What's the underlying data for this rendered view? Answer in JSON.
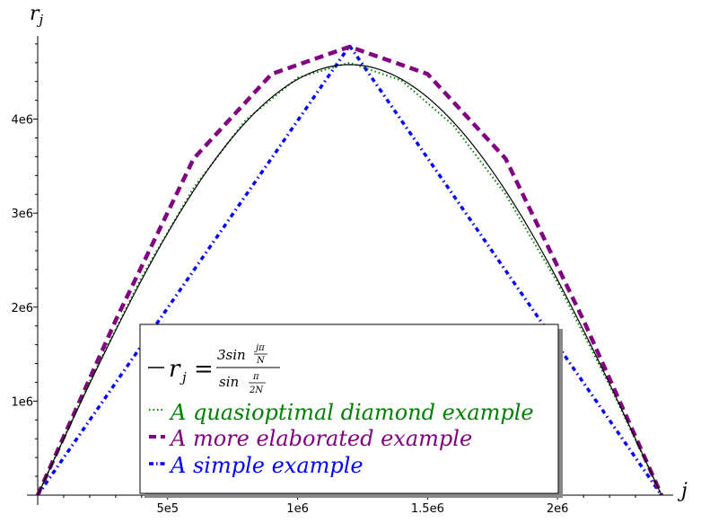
{
  "chart_data": {
    "type": "line",
    "xlabel": "j",
    "ylabel": "r_j",
    "xlim": [
      0,
      2400000
    ],
    "ylim": [
      0,
      4900000
    ],
    "x_ticks": [
      {
        "value": 500000,
        "label": "5e5"
      },
      {
        "value": 1000000,
        "label": "1e6"
      },
      {
        "value": 1500000,
        "label": "1.5e6"
      },
      {
        "value": 2000000,
        "label": "2e6"
      }
    ],
    "y_ticks": [
      {
        "value": 1000000,
        "label": "1e6"
      },
      {
        "value": 2000000,
        "label": "2e6"
      },
      {
        "value": 3000000,
        "label": "3e6"
      },
      {
        "value": 4000000,
        "label": "4e6"
      }
    ],
    "series": [
      {
        "name": "r_j = 3sin(jπ/N) / sin(π/2N)",
        "color": "#000000",
        "style": "solid",
        "x": [
          0,
          200000,
          400000,
          600000,
          800000,
          1000000,
          1200000,
          1400000,
          1600000,
          1800000,
          2000000,
          2200000,
          2400000
        ],
        "y": [
          0,
          1190000,
          2290000,
          3240000,
          3970000,
          4430000,
          4580000,
          4430000,
          3970000,
          3240000,
          2290000,
          1190000,
          0
        ]
      },
      {
        "name": "A quasioptimal diamond example",
        "color": "#008000",
        "style": "dotted",
        "x": [
          0,
          200000,
          400000,
          600000,
          800000,
          1000000,
          1200000,
          1400000,
          1600000,
          1800000,
          2000000,
          2200000,
          2400000
        ],
        "y": [
          0,
          1210000,
          2320000,
          3270000,
          3990000,
          4440000,
          4600000,
          4410000,
          3930000,
          3200000,
          2260000,
          1170000,
          0
        ]
      },
      {
        "name": "A more elaborated example",
        "color": "#800080",
        "style": "dashed",
        "x": [
          0,
          300000,
          600000,
          900000,
          1200000,
          1500000,
          1800000,
          2100000,
          2400000
        ],
        "y": [
          0,
          1860000,
          3580000,
          4480000,
          4770000,
          4480000,
          3580000,
          1860000,
          0
        ]
      },
      {
        "name": "A simple example",
        "color": "#0000ff",
        "style": "dashdot",
        "x": [
          0,
          1200000,
          2400000
        ],
        "y": [
          0,
          4780000,
          0
        ]
      }
    ],
    "legend": {
      "placement": "lower-center",
      "formula": {
        "prefix": "−",
        "lhs": "r",
        "lhs_sub": "j",
        "equals": "=",
        "num_coef": "3sin",
        "num_frac_top": "jπ",
        "num_frac_bottom": "N",
        "den_func": "sin",
        "den_frac_top": "π",
        "den_frac_bottom": "2N"
      }
    },
    "grid": false
  }
}
